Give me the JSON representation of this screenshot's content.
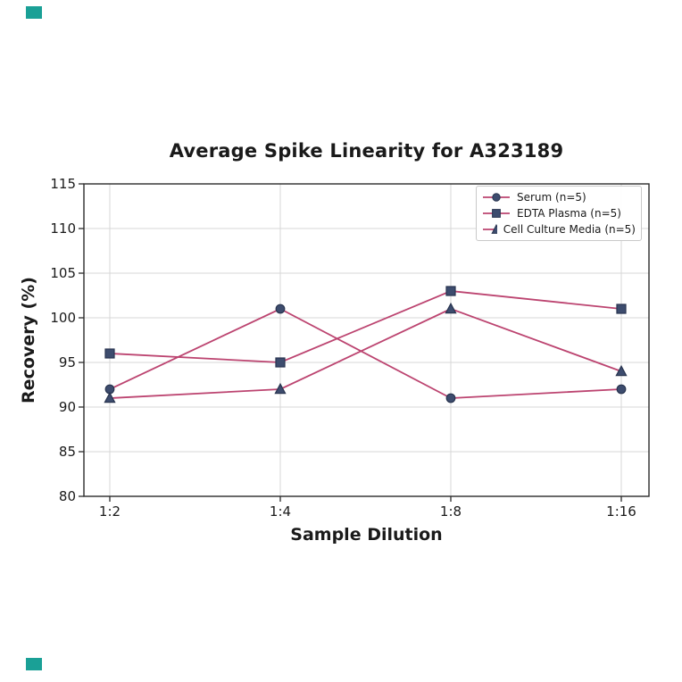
{
  "page": {
    "background": "#ffffff"
  },
  "decorations": {
    "corner_tab_color": "#1aa096"
  },
  "chart_data": {
    "type": "line",
    "title": "Average Spike Linearity for A323189",
    "xlabel": "Sample Dilution",
    "ylabel": "Recovery (%)",
    "categories": [
      "1:2",
      "1:4",
      "1:8",
      "1:16"
    ],
    "series": [
      {
        "name": "Serum (n=5)",
        "marker": "circle",
        "values": [
          92,
          101,
          91,
          92
        ]
      },
      {
        "name": "EDTA Plasma (n=5)",
        "marker": "square",
        "values": [
          96,
          95,
          103,
          101
        ]
      },
      {
        "name": "Cell Culture Media (n=5)",
        "marker": "triangle",
        "values": [
          91,
          92,
          101,
          94
        ]
      }
    ],
    "ylim": [
      80,
      115
    ],
    "yticks": [
      80,
      85,
      90,
      95,
      100,
      105,
      110,
      115
    ],
    "grid": true,
    "legend_position": "upper right",
    "colors": {
      "line": "#bc4470",
      "marker_fill": "#3d4c6e",
      "marker_edge": "#28344f",
      "grid": "#d7d7d7",
      "spine": "#2b2b2b",
      "text": "#1a1a1a"
    }
  }
}
